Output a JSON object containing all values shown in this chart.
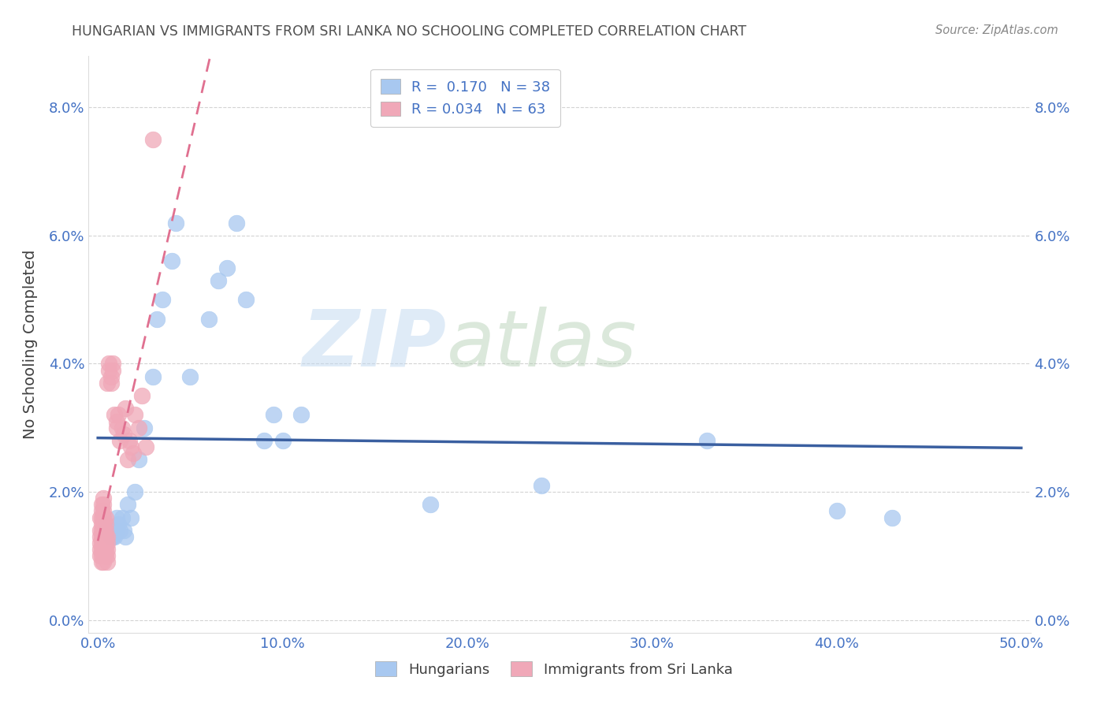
{
  "title": "HUNGARIAN VS IMMIGRANTS FROM SRI LANKA NO SCHOOLING COMPLETED CORRELATION CHART",
  "source": "Source: ZipAtlas.com",
  "ylabel": "No Schooling Completed",
  "xlabel_ticks": [
    "0.0%",
    "10.0%",
    "20.0%",
    "30.0%",
    "40.0%",
    "50.0%"
  ],
  "xlabel_vals": [
    0.0,
    0.1,
    0.2,
    0.3,
    0.4,
    0.5
  ],
  "ylabel_ticks": [
    "0.0%",
    "2.0%",
    "4.0%",
    "6.0%",
    "8.0%"
  ],
  "ylabel_vals": [
    0.0,
    0.02,
    0.04,
    0.06,
    0.08
  ],
  "xlim": [
    -0.005,
    0.505
  ],
  "ylim": [
    -0.002,
    0.088
  ],
  "hungarian_color": "#a8c8f0",
  "sri_lanka_color": "#f0a8b8",
  "hungarian_line_color": "#3a5fa0",
  "sri_lanka_line_color": "#e07090",
  "watermark_left": "ZIP",
  "watermark_right": "atlas",
  "background_color": "#ffffff",
  "grid_color": "#c8c8c8",
  "title_color": "#505050",
  "axis_color": "#4472c4",
  "hun_R": 0.17,
  "hun_N": 38,
  "srl_R": 0.034,
  "srl_N": 63,
  "hungarian_x": [
    0.004,
    0.005,
    0.006,
    0.007,
    0.008,
    0.009,
    0.01,
    0.01,
    0.011,
    0.012,
    0.013,
    0.014,
    0.015,
    0.016,
    0.018,
    0.02,
    0.022,
    0.025,
    0.03,
    0.032,
    0.035,
    0.04,
    0.042,
    0.05,
    0.06,
    0.065,
    0.07,
    0.075,
    0.08,
    0.09,
    0.095,
    0.1,
    0.11,
    0.18,
    0.24,
    0.33,
    0.4,
    0.43
  ],
  "hungarian_y": [
    0.015,
    0.014,
    0.014,
    0.013,
    0.013,
    0.013,
    0.014,
    0.016,
    0.015,
    0.014,
    0.016,
    0.014,
    0.013,
    0.018,
    0.016,
    0.02,
    0.025,
    0.03,
    0.038,
    0.047,
    0.05,
    0.056,
    0.062,
    0.038,
    0.047,
    0.053,
    0.055,
    0.062,
    0.05,
    0.028,
    0.032,
    0.028,
    0.032,
    0.018,
    0.021,
    0.028,
    0.017,
    0.016
  ],
  "srilanka_x": [
    0.001,
    0.001,
    0.001,
    0.001,
    0.001,
    0.001,
    0.002,
    0.002,
    0.002,
    0.002,
    0.002,
    0.002,
    0.002,
    0.002,
    0.002,
    0.002,
    0.003,
    0.003,
    0.003,
    0.003,
    0.003,
    0.003,
    0.003,
    0.003,
    0.003,
    0.003,
    0.003,
    0.004,
    0.004,
    0.004,
    0.004,
    0.004,
    0.004,
    0.004,
    0.005,
    0.005,
    0.005,
    0.005,
    0.005,
    0.005,
    0.006,
    0.006,
    0.007,
    0.007,
    0.008,
    0.008,
    0.009,
    0.01,
    0.01,
    0.011,
    0.012,
    0.013,
    0.014,
    0.015,
    0.016,
    0.017,
    0.018,
    0.019,
    0.02,
    0.022,
    0.024,
    0.026,
    0.03
  ],
  "srilanka_y": [
    0.01,
    0.011,
    0.012,
    0.013,
    0.014,
    0.016,
    0.009,
    0.01,
    0.011,
    0.012,
    0.013,
    0.014,
    0.015,
    0.016,
    0.017,
    0.018,
    0.009,
    0.01,
    0.011,
    0.012,
    0.013,
    0.014,
    0.015,
    0.016,
    0.017,
    0.018,
    0.019,
    0.01,
    0.011,
    0.012,
    0.013,
    0.014,
    0.015,
    0.016,
    0.009,
    0.01,
    0.011,
    0.012,
    0.013,
    0.037,
    0.039,
    0.04,
    0.037,
    0.038,
    0.04,
    0.039,
    0.032,
    0.03,
    0.031,
    0.032,
    0.028,
    0.03,
    0.029,
    0.033,
    0.025,
    0.028,
    0.027,
    0.026,
    0.032,
    0.03,
    0.035,
    0.027,
    0.075
  ]
}
